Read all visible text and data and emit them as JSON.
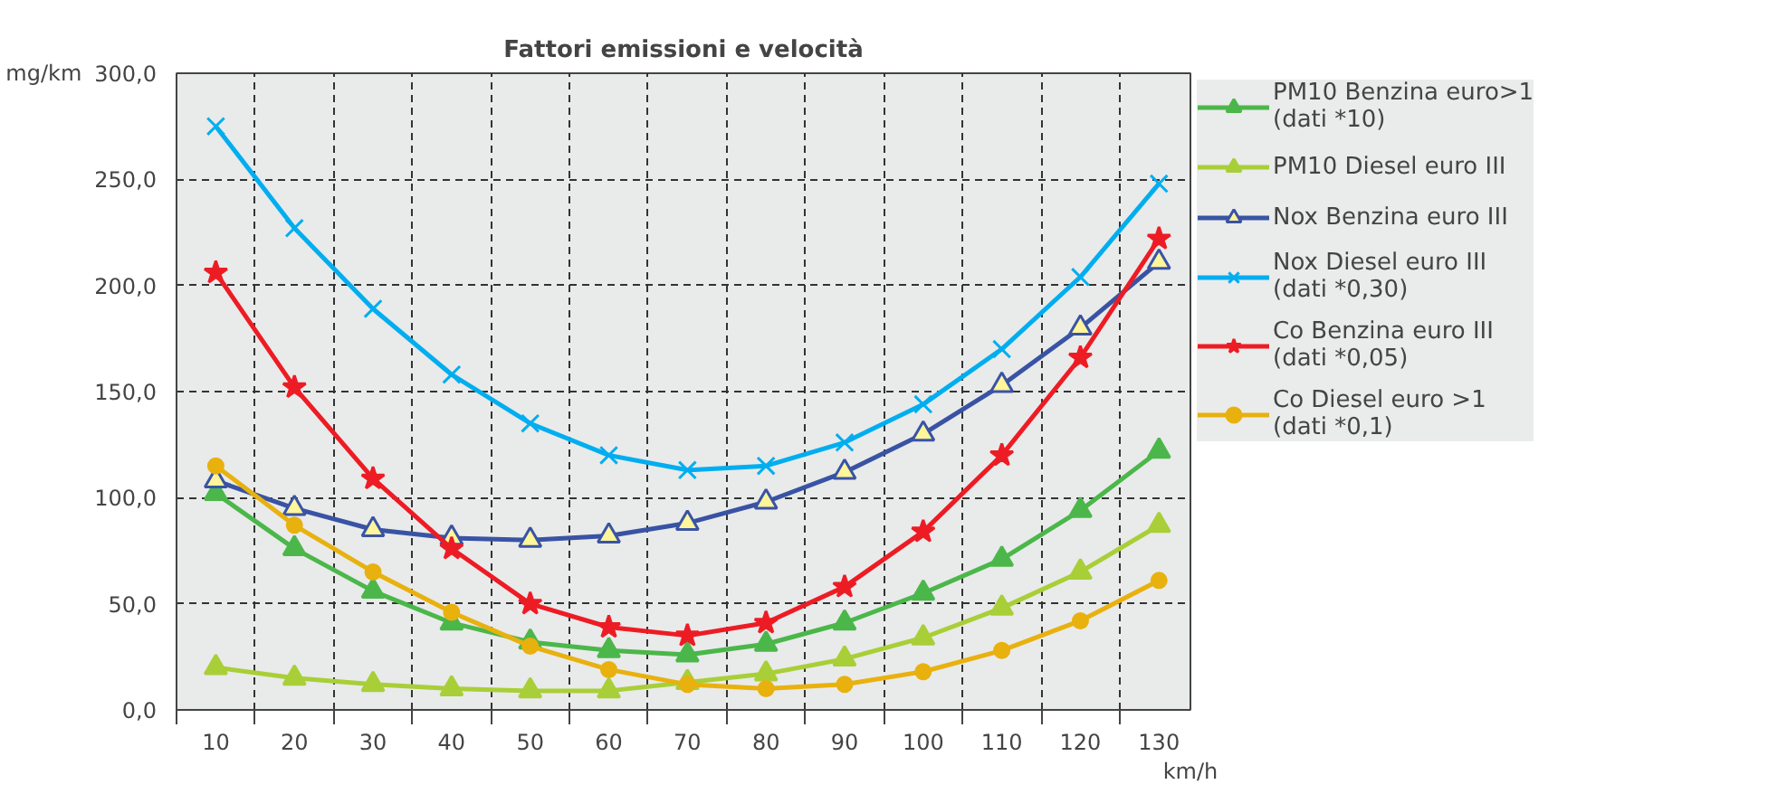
{
  "chart_data": {
    "type": "line",
    "title": "Fattori emissioni e velocità",
    "xlabel": "km/h",
    "ylabel": "mg/km",
    "categories": [
      "10",
      "20",
      "30",
      "40",
      "50",
      "60",
      "70",
      "80",
      "90",
      "100",
      "110",
      "120",
      "130"
    ],
    "ylim": [
      0,
      300
    ],
    "yticks": [
      {
        "value": 0,
        "label": "0,0"
      },
      {
        "value": 50,
        "label": "50,0"
      },
      {
        "value": 100,
        "label": "100,0"
      },
      {
        "value": 150,
        "label": "150,0"
      },
      {
        "value": 200,
        "label": "200,0"
      },
      {
        "value": 250,
        "label": "250,0"
      },
      {
        "value": 300,
        "label": "300,0"
      }
    ],
    "grid": true,
    "legend": "right",
    "line_style": "solid",
    "series": [
      {
        "name": "PM10 Benzina euro>1\n(dati *10)",
        "color": "#4bb74a",
        "marker": "triangle",
        "values": [
          102,
          76,
          56,
          41,
          32,
          28,
          26,
          31,
          41,
          55,
          71,
          94,
          122
        ]
      },
      {
        "name": "PM10 Diesel euro III",
        "color": "#a8cf37",
        "marker": "triangle",
        "values": [
          20,
          15,
          12,
          10,
          9,
          9,
          13,
          17,
          24,
          34,
          48,
          65,
          87
        ]
      },
      {
        "name": "Nox Benzina euro III",
        "color": "#3953a4",
        "marker": "triangle",
        "colors": [
          "#fff59a",
          "#fff59a",
          "#fff59a",
          "#fff59a",
          "#fff59a",
          "#fff59a",
          "#fff59a",
          "#fff59a",
          "#fff59a",
          "#fff59a",
          "#fff59a",
          "#fff59a",
          "#fff59a"
        ],
        "values": [
          108,
          95,
          85,
          81,
          80,
          82,
          88,
          98,
          112,
          130,
          153,
          180,
          211
        ]
      },
      {
        "name": "Nox Diesel euro III\n(dati *0,30)",
        "color": "#00aeef",
        "marker": "cross",
        "values": [
          275,
          227,
          189,
          158,
          135,
          120,
          113,
          115,
          126,
          144,
          170,
          204,
          248
        ]
      },
      {
        "name": "Co Benzina euro III\n(dati *0,05)",
        "color": "#ed1c24",
        "marker": "star",
        "values": [
          206,
          152,
          109,
          76,
          50,
          39,
          35,
          41,
          58,
          84,
          120,
          166,
          222
        ]
      },
      {
        "name": "Co Diesel euro >1\n(dati *0,1)",
        "color": "#e8b10e",
        "marker": "circle",
        "values": [
          115,
          87,
          65,
          46,
          30,
          19,
          12,
          10,
          12,
          18,
          28,
          42,
          61
        ]
      }
    ]
  }
}
